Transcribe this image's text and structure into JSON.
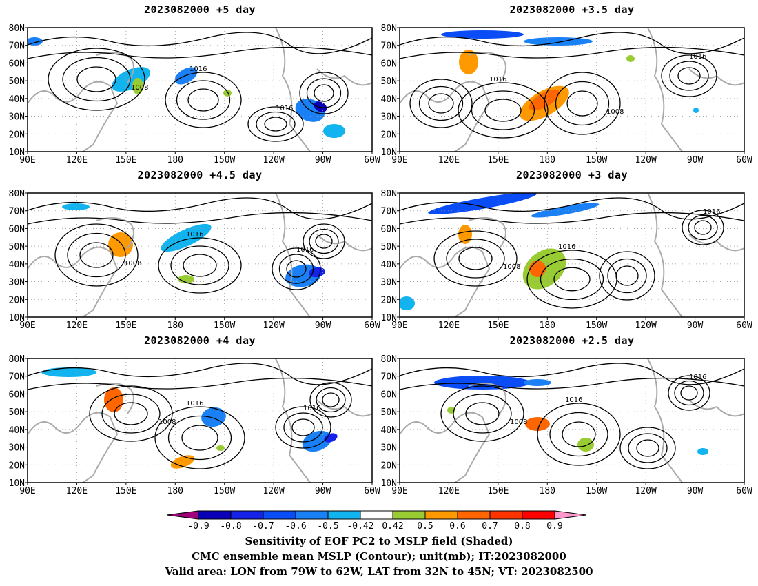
{
  "panels": [
    {
      "title": "2023082000  +5  day"
    },
    {
      "title": "2023082000  +3.5  day"
    },
    {
      "title": "2023082000  +4.5  day"
    },
    {
      "title": "2023082000  +3  day"
    },
    {
      "title": "2023082000  +4  day"
    },
    {
      "title": "2023082000  +2.5  day"
    }
  ],
  "axes": {
    "lat_labels": [
      "80N",
      "70N",
      "60N",
      "50N",
      "40N",
      "30N",
      "20N",
      "10N"
    ],
    "lon_labels": [
      "90E",
      "120E",
      "150E",
      "180",
      "150W",
      "120W",
      "90W",
      "60W"
    ],
    "lat_range": [
      10,
      80
    ],
    "lon_range": [
      90,
      300
    ]
  },
  "contour_labels": {
    "high": "1016",
    "low": "1008"
  },
  "colorbar": {
    "tick_labels": [
      "-0.9",
      "-0.8",
      "-0.7",
      "-0.6",
      "-0.5",
      "-0.42",
      "0.42",
      "0.5",
      "0.6",
      "0.7",
      "0.8",
      "0.9"
    ],
    "colors": [
      "#a0007a",
      "#0a00b8",
      "#1522e8",
      "#0a4cf5",
      "#1a80f5",
      "#12b4ef",
      "#ffffff",
      "#99cc33",
      "#ff9900",
      "#ff6600",
      "#ff3300",
      "#ff0000",
      "#ff99cc"
    ]
  },
  "footer": {
    "line1": "Sensitivity of EOF PC2 to MSLP field (Shaded)",
    "line2": "CMC ensemble mean MSLP (Contour); unit(mb); IT:2023082000",
    "line3": "Valid area: LON from 79W to 62W, LAT from 32N to 45N; VT: 2023082500"
  }
}
